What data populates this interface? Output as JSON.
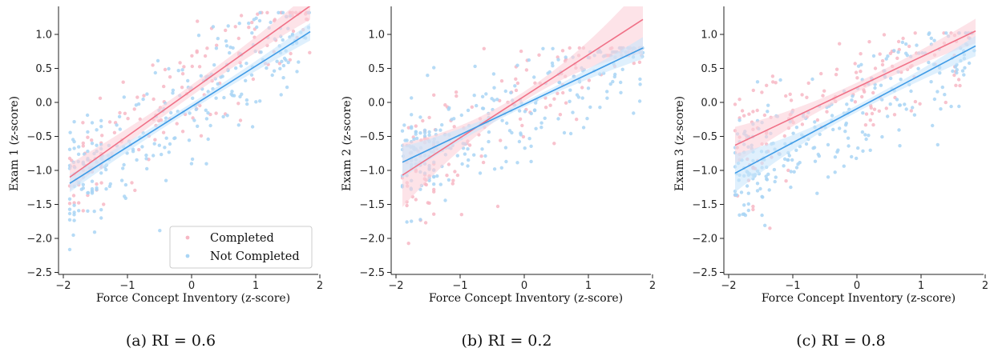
{
  "colors": {
    "completed": "#f07187",
    "completed_band": "#fbd1d9",
    "completed_point": "#f7b7c4",
    "not_completed": "#3f9be6",
    "not_completed_band": "#c9e6fb",
    "not_completed_point": "#a9d5f5"
  },
  "legend": {
    "completed_label": "Completed",
    "not_completed_label": "Not Completed",
    "placement": "lower-right"
  },
  "chart_data": [
    {
      "type": "scatter",
      "caption": "(a) RI = 0.6",
      "xlabel": "Force Concept Inventory (z-score)",
      "ylabel": "Exam 1 (z-score)",
      "xlim": [
        -2.0,
        2.0
      ],
      "ylim": [
        -2.5,
        1.4
      ],
      "xticks": [
        "−2",
        "−1",
        "0",
        "1",
        "2"
      ],
      "yticks": [
        "−2.5",
        "−2.0",
        "−1.5",
        "−1.0",
        "−0.5",
        "0.0",
        "0.5",
        "1.0"
      ],
      "grid": false,
      "series": [
        {
          "name": "Completed",
          "fit_x": [
            -1.9,
            1.85
          ],
          "fit_y": [
            -1.1,
            1.42
          ],
          "ci_halfwidth": [
            0.2,
            0.08,
            0.2
          ]
        },
        {
          "name": "Not Completed",
          "fit_x": [
            -1.9,
            1.85
          ],
          "fit_y": [
            -1.19,
            1.04
          ],
          "ci_halfwidth": [
            0.13,
            0.05,
            0.13
          ]
        }
      ]
    },
    {
      "type": "scatter",
      "caption": "(b) RI = 0.2",
      "xlabel": "Force Concept Inventory (z-score)",
      "ylabel": "Exam 2 (z-score)",
      "xlim": [
        -2.0,
        2.0
      ],
      "ylim": [
        -2.5,
        1.4
      ],
      "xticks": [
        "−2",
        "−1",
        "0",
        "1",
        "2"
      ],
      "yticks": [
        "−2.5",
        "−2.0",
        "−1.5",
        "−1.0",
        "−0.5",
        "0.0",
        "0.5",
        "1.0"
      ],
      "grid": false,
      "series": [
        {
          "name": "Completed",
          "fit_x": [
            -1.9,
            1.85
          ],
          "fit_y": [
            -1.07,
            1.22
          ],
          "ci_halfwidth": [
            0.47,
            0.07,
            0.5
          ]
        },
        {
          "name": "Not Completed",
          "fit_x": [
            -1.9,
            1.85
          ],
          "fit_y": [
            -0.88,
            0.8
          ],
          "ci_halfwidth": [
            0.23,
            0.04,
            0.16
          ]
        }
      ]
    },
    {
      "type": "scatter",
      "caption": "(c) RI = 0.8",
      "xlabel": "Force Concept Inventory (z-score)",
      "ylabel": "Exam 3 (z-score)",
      "xlim": [
        -2.0,
        2.0
      ],
      "ylim": [
        -2.5,
        1.4
      ],
      "xticks": [
        "−2",
        "−1",
        "0",
        "1",
        "2"
      ],
      "yticks": [
        "−2.5",
        "−2.0",
        "−1.5",
        "−1.0",
        "−0.5",
        "0.0",
        "0.5",
        "1.0"
      ],
      "grid": false,
      "series": [
        {
          "name": "Completed",
          "fit_x": [
            -1.9,
            1.85
          ],
          "fit_y": [
            -0.63,
            1.05
          ],
          "ci_halfwidth": [
            0.27,
            0.07,
            0.18
          ]
        },
        {
          "name": "Not Completed",
          "fit_x": [
            -1.9,
            1.85
          ],
          "fit_y": [
            -1.04,
            0.83
          ],
          "ci_halfwidth": [
            0.28,
            0.05,
            0.15
          ]
        }
      ]
    }
  ]
}
